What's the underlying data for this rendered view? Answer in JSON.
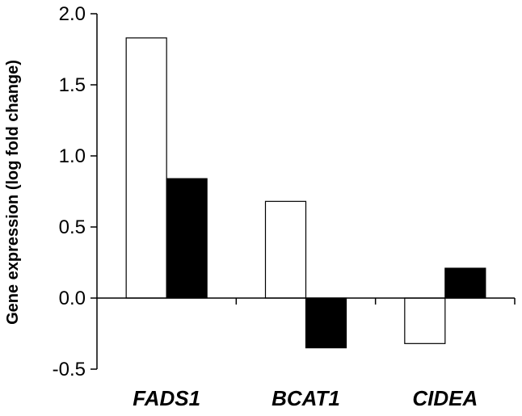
{
  "chart_data": {
    "type": "bar",
    "title": "",
    "xlabel": "",
    "ylabel": "Gene expression (log  fold change)",
    "categories": [
      "FADS1",
      "BCAT1",
      "CIDEA"
    ],
    "series": [
      {
        "name": "",
        "fill": "#ffffff",
        "values": [
          1.83,
          0.68,
          -0.32
        ]
      },
      {
        "name": "",
        "fill": "#000000",
        "values": [
          0.84,
          -0.35,
          0.21
        ]
      }
    ],
    "ylim": [
      -0.5,
      2.0
    ],
    "yticks": [
      -0.5,
      0.0,
      0.5,
      1.0,
      1.5,
      2.0
    ],
    "ytick_labels": [
      "-0.5",
      "0.0",
      "0.5",
      "1.0",
      "1.5",
      "2.0"
    ],
    "grid": false,
    "legend": "none"
  }
}
